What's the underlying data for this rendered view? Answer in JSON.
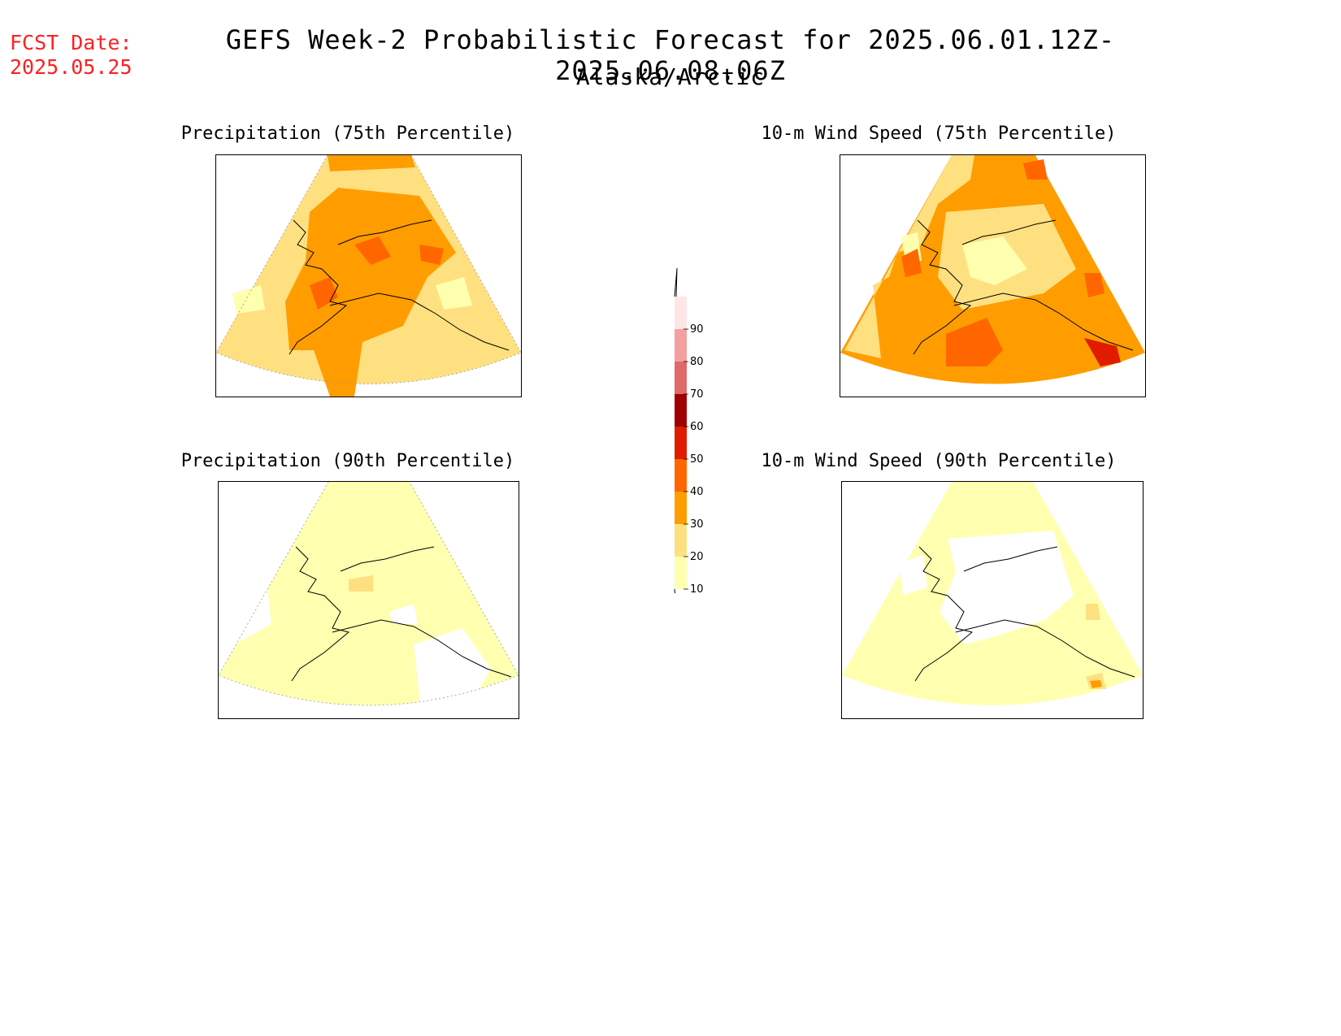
{
  "header": {
    "fcst_label": "FCST Date:",
    "fcst_date": "2025.05.25",
    "title": "GEFS Week-2 Probabilistic Forecast for 2025.06.01.12Z-2025.06.08.06Z",
    "region": "Alaska/Arctic"
  },
  "panels": [
    {
      "title": "Precipitation (75th Percentile)",
      "dominant_level": 20
    },
    {
      "title": "10-m Wind Speed (75th Percentile)",
      "dominant_level": 30
    },
    {
      "title": "Precipitation (90th Percentile)",
      "dominant_level": 10
    },
    {
      "title": "10-m Wind Speed (90th Percentile)",
      "dominant_level": 10
    }
  ],
  "colorbar": {
    "labels": [
      "90",
      "80",
      "70",
      "60",
      "50",
      "40",
      "30",
      "20",
      "10"
    ],
    "colors": [
      "#ffe6e6",
      "#f4a0a0",
      "#e06a6a",
      "#a00000",
      "#e01b00",
      "#ff6600",
      "#ff9d00",
      "#ffe080",
      "#ffffb0"
    ]
  },
  "colors": {
    "c10": "#ffffb0",
    "c20": "#ffe080",
    "c30": "#ff9d00",
    "c40": "#ff6600",
    "c50": "#e01b00",
    "accent_text": "#ff2020"
  }
}
